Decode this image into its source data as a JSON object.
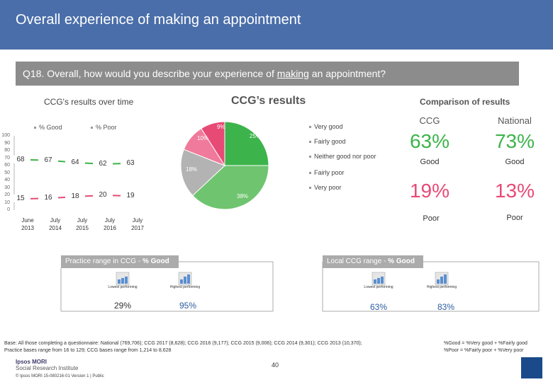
{
  "header": {
    "title": "Overall experience of making an appointment"
  },
  "question": {
    "prefix": "Q18. Overall, how would you describe your experience of ",
    "underlined": "making",
    "suffix": " an appointment?"
  },
  "left_section_title": "CCG's results over time",
  "center_section_title": "CCG’s results",
  "right_section_title": "Comparison of results",
  "colors": {
    "good": "#3cb44b",
    "poor": "#e84a76",
    "header": "#4a6ea9",
    "ccg_blue": "#2a5ca0"
  },
  "chart_data": [
    {
      "type": "line",
      "title": "CCG's results over time",
      "x": [
        "June 2013",
        "July 2014",
        "July 2015",
        "July 2016",
        "July 2017"
      ],
      "x_lines": [
        [
          "June",
          "2013"
        ],
        [
          "July",
          "2014"
        ],
        [
          "July",
          "2015"
        ],
        [
          "July",
          "2016"
        ],
        [
          "July",
          "2017"
        ]
      ],
      "yticks": [
        0,
        10,
        20,
        30,
        40,
        50,
        60,
        70,
        80,
        90,
        100
      ],
      "ylim": [
        0,
        100
      ],
      "legend": [
        "% Good",
        "% Poor"
      ],
      "series": [
        {
          "name": "% Good",
          "values": [
            68,
            67,
            64,
            62,
            63
          ],
          "color": "#3cb44b"
        },
        {
          "name": "% Poor",
          "values": [
            15,
            16,
            18,
            20,
            19
          ],
          "color": "#e84a76"
        }
      ]
    },
    {
      "type": "pie",
      "title": "CCG’s results",
      "slices": [
        {
          "label": "Very good",
          "value": 25,
          "display": "25%",
          "color": "#3cb44b"
        },
        {
          "label": "Fairly good",
          "value": 38,
          "display": "38%",
          "color": "#6fc46f"
        },
        {
          "label": "Neither good nor poor",
          "value": 18,
          "display": "18%",
          "color": "#b3b3b3"
        },
        {
          "label": "Fairly poor",
          "value": 10,
          "display": "10%",
          "color": "#f07a9b"
        },
        {
          "label": "Very poor",
          "value": 9,
          "display": "9%",
          "color": "#e84a76"
        }
      ],
      "legend": [
        "Very good",
        "Fairly good",
        "Neither good nor poor",
        "Fairly poor",
        "Very poor"
      ]
    }
  ],
  "comparison": {
    "ccg_label": "CCG",
    "national_label": "National",
    "ccg_good": "63%",
    "national_good": "73%",
    "good_label": "Good",
    "ccg_poor": "19%",
    "national_poor": "13%",
    "poor_label": "Poor"
  },
  "practice_range": {
    "label_prefix": "Practice range in CCG - ",
    "label_bold": "% Good",
    "lowest_caption": "Lowest performing",
    "highest_caption": "Highest performing",
    "lowest_value": "29%",
    "highest_value": "95%"
  },
  "local_range": {
    "label_prefix": "Local CCG range - ",
    "label_bold": "% Good",
    "lowest_caption": "Lowest performing",
    "highest_caption": "Highest performing",
    "lowest_value": "63%",
    "highest_value": "83%"
  },
  "footer": {
    "base": "Base: All those completing a questionnaire: National (769,706); CCG 2017 (8,628); CCG 2016 (9,177); CCG 2015 (9,006); CCG 2014 (9,301); CCG 2013 (10,370); Practice bases range from 16 to 129; CCG bases range from 1,214 to 8,628",
    "def_good": "%Good = %Very good + %Fairly good",
    "def_poor": "%Poor = %Fairly poor + %Very poor",
    "page_number": "40",
    "brand_line1": "Ipsos MORI",
    "brand_line2": "Social Research Institute",
    "copyright": "© Ipsos MORI      15-080216-01 Version 1 | Public"
  }
}
